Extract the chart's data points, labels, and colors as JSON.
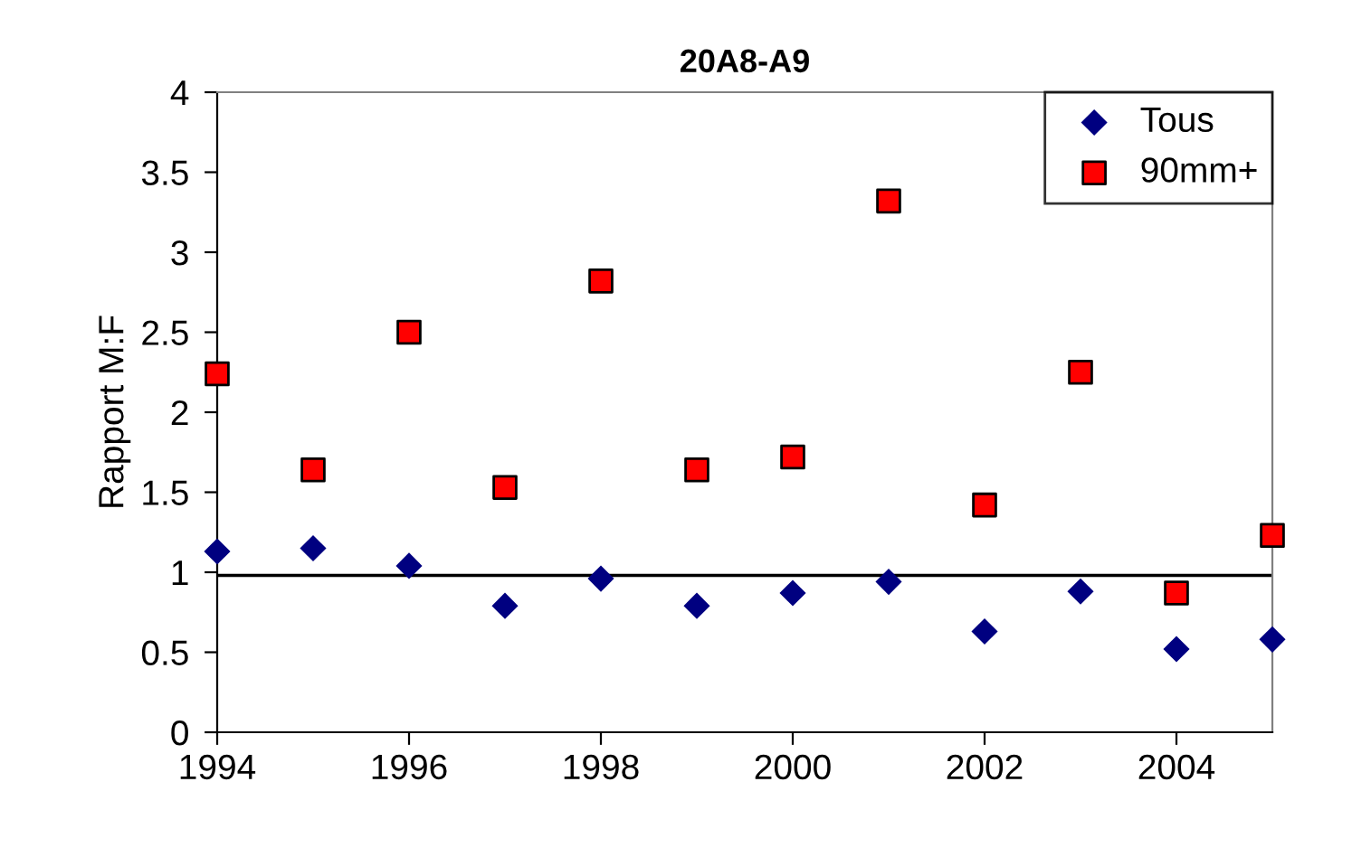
{
  "chart_data": {
    "type": "scatter",
    "title": "20A8-A9",
    "ylabel": "Rapport M:F",
    "x": [
      1994,
      1995,
      1996,
      1997,
      1998,
      1999,
      2000,
      2001,
      2002,
      2003,
      2004,
      2005
    ],
    "series": [
      {
        "name": "Tous",
        "color": "#000080",
        "marker": "diamond",
        "values": [
          1.13,
          1.15,
          1.04,
          0.79,
          0.96,
          0.79,
          0.87,
          0.94,
          0.63,
          0.88,
          0.52,
          0.58
        ]
      },
      {
        "name": "90mm+",
        "color": "#ff0000",
        "marker": "square",
        "values": [
          2.24,
          1.64,
          2.5,
          1.53,
          2.82,
          1.64,
          1.72,
          3.32,
          1.42,
          2.25,
          0.87,
          1.23
        ]
      }
    ],
    "xlim": [
      1994,
      2005
    ],
    "xticks": [
      1994,
      1996,
      1998,
      2000,
      2002,
      2004
    ],
    "ylim": [
      0,
      4
    ],
    "yticks": [
      0,
      0.5,
      1,
      1.5,
      2,
      2.5,
      3,
      3.5,
      4
    ],
    "ref_lines": [
      {
        "axis": "y",
        "value": 0.98,
        "color": "#000000"
      }
    ],
    "grid": false,
    "legend": "top right"
  }
}
